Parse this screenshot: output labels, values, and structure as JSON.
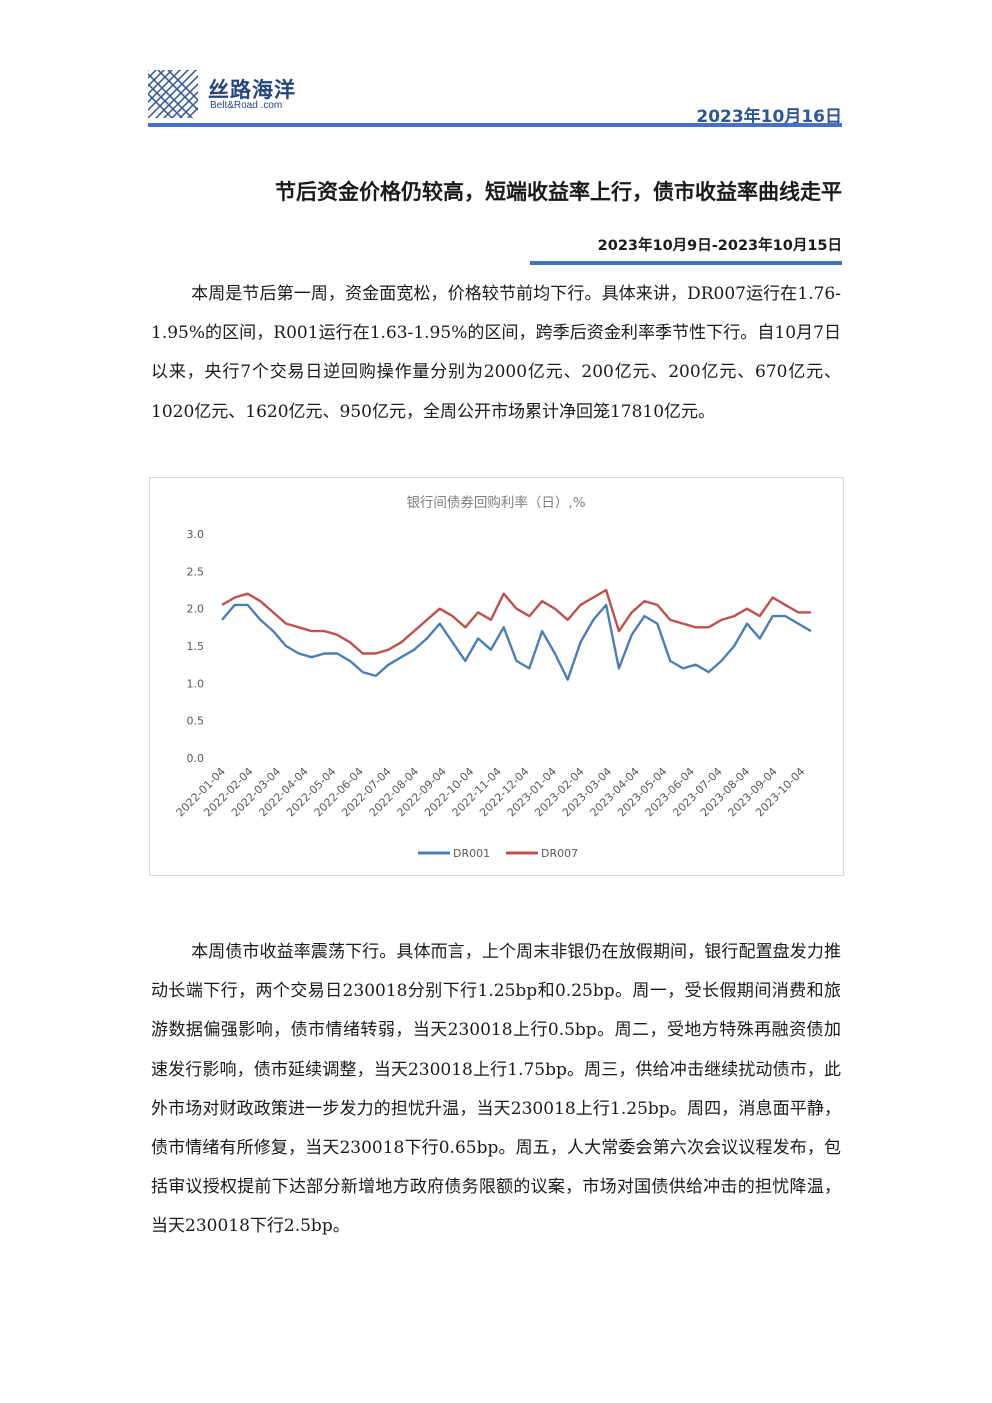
{
  "header": {
    "logo_cn": "丝路海洋",
    "logo_en": "Belt&Road .com",
    "date": "2023年10月16日"
  },
  "article": {
    "title": "节后资金价格仍较高，短端收益率上行，债市收益率曲线走平",
    "date_range": "2023年10月9日-2023年10月15日",
    "para1": "本周是节后第一周，资金面宽松，价格较节前均下行。具体来讲，DR007运行在1.76-1.95%的区间，R001运行在1.63-1.95%的区间，跨季后资金利率季节性下行。自10月7日以来，央行7个交易日逆回购操作量分别为2000亿元、200亿元、200亿元、670亿元、1020亿元、1620亿元、950亿元，全周公开市场累计净回笼17810亿元。",
    "para2": "本周债市收益率震荡下行。具体而言，上个周末非银仍在放假期间，银行配置盘发力推动长端下行，两个交易日230018分别下行1.25bp和0.25bp。周一，受长假期间消费和旅游数据偏强影响，债市情绪转弱，当天230018上行0.5bp。周二，受地方特殊再融资债加速发行影响，债市延续调整，当天230018上行1.75bp。周三，供给冲击继续扰动债市，此外市场对财政政策进一步发力的担忧升温，当天230018上行1.25bp。周四，消息面平静，债市情绪有所修复，当天230018下行0.65bp。周五，人大常委会第六次会议议程发布，包括审议授权提前下达部分新增地方政府债务限额的议案，市场对国债供给冲击的担忧降温，当天230018下行2.5bp。"
  },
  "chart_data": {
    "type": "line",
    "title": "银行间债券回购利率（日）,%",
    "ylim": [
      0,
      3.0
    ],
    "yticks": [
      "0.0",
      "0.5",
      "1.0",
      "1.5",
      "2.0",
      "2.5",
      "3.0"
    ],
    "x_ticks": [
      "2022-01-04",
      "2022-02-04",
      "2022-03-04",
      "2022-04-04",
      "2022-05-04",
      "2022-06-04",
      "2022-07-04",
      "2022-08-04",
      "2022-09-04",
      "2022-10-04",
      "2022-11-04",
      "2022-12-04",
      "2023-01-04",
      "2023-02-04",
      "2023-03-04",
      "2023-04-04",
      "2023-05-04",
      "2023-06-04",
      "2023-07-04",
      "2023-08-04",
      "2023-09-04",
      "2023-10-04"
    ],
    "x_month_index": [
      0,
      1,
      2,
      3,
      4,
      5,
      6,
      7,
      8,
      9,
      10,
      11,
      12,
      13,
      14,
      15,
      16,
      17,
      18,
      19,
      20,
      21,
      21.35
    ],
    "legend_position": "bottom",
    "grid": false,
    "series": [
      {
        "name": "DR001",
        "color": "#4a7ebb",
        "values": [
          1.85,
          2.05,
          2.05,
          1.85,
          1.7,
          1.5,
          1.4,
          1.35,
          1.4,
          1.4,
          1.3,
          1.15,
          1.1,
          1.25,
          1.35,
          1.45,
          1.6,
          1.8,
          1.55,
          1.3,
          1.6,
          1.45,
          1.75,
          1.3,
          1.2,
          1.7,
          1.4,
          1.05,
          1.55,
          1.85,
          2.05,
          1.2,
          1.65,
          1.9,
          1.8,
          1.3,
          1.2,
          1.25,
          1.15,
          1.3,
          1.5,
          1.8,
          1.6,
          1.9,
          1.9,
          1.8,
          1.7
        ]
      },
      {
        "name": "DR007",
        "color": "#c0504d",
        "values": [
          2.05,
          2.15,
          2.2,
          2.1,
          1.95,
          1.8,
          1.75,
          1.7,
          1.7,
          1.65,
          1.55,
          1.4,
          1.4,
          1.45,
          1.55,
          1.7,
          1.85,
          2.0,
          1.9,
          1.75,
          1.95,
          1.85,
          2.2,
          2.0,
          1.9,
          2.1,
          2.0,
          1.85,
          2.05,
          2.15,
          2.25,
          1.7,
          1.95,
          2.1,
          2.05,
          1.85,
          1.8,
          1.75,
          1.75,
          1.85,
          1.9,
          2.0,
          1.9,
          2.15,
          2.05,
          1.95,
          1.95
        ]
      }
    ]
  }
}
